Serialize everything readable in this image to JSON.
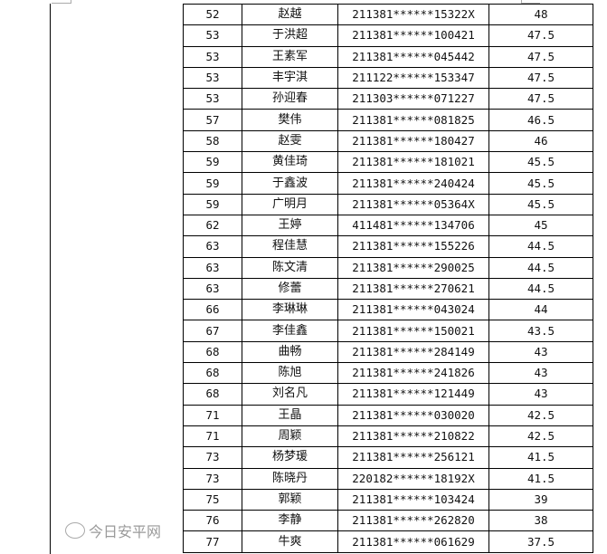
{
  "rows": [
    {
      "rank": "52",
      "name": "赵越",
      "id": "211381******15322X",
      "score": "48"
    },
    {
      "rank": "53",
      "name": "于洪超",
      "id": "211381******100421",
      "score": "47.5"
    },
    {
      "rank": "53",
      "name": "王素军",
      "id": "211381******045442",
      "score": "47.5"
    },
    {
      "rank": "53",
      "name": "丰宇淇",
      "id": "211122******153347",
      "score": "47.5"
    },
    {
      "rank": "53",
      "name": "孙迎春",
      "id": "211303******071227",
      "score": "47.5"
    },
    {
      "rank": "57",
      "name": "樊伟",
      "id": "211381******081825",
      "score": "46.5"
    },
    {
      "rank": "58",
      "name": "赵雯",
      "id": "211381******180427",
      "score": "46"
    },
    {
      "rank": "59",
      "name": "黄佳琦",
      "id": "211381******181021",
      "score": "45.5"
    },
    {
      "rank": "59",
      "name": "于鑫波",
      "id": "211381******240424",
      "score": "45.5"
    },
    {
      "rank": "59",
      "name": "广明月",
      "id": "211381******05364X",
      "score": "45.5"
    },
    {
      "rank": "62",
      "name": "王婷",
      "id": "411481******134706",
      "score": "45"
    },
    {
      "rank": "63",
      "name": "程佳慧",
      "id": "211381******155226",
      "score": "44.5"
    },
    {
      "rank": "63",
      "name": "陈文清",
      "id": "211381******290025",
      "score": "44.5"
    },
    {
      "rank": "63",
      "name": "修蕾",
      "id": "211381******270621",
      "score": "44.5"
    },
    {
      "rank": "66",
      "name": "李琳琳",
      "id": "211381******043024",
      "score": "44"
    },
    {
      "rank": "67",
      "name": "李佳鑫",
      "id": "211381******150021",
      "score": "43.5"
    },
    {
      "rank": "68",
      "name": "曲畅",
      "id": "211381******284149",
      "score": "43"
    },
    {
      "rank": "68",
      "name": "陈旭",
      "id": "211381******241826",
      "score": "43"
    },
    {
      "rank": "68",
      "name": "刘名凡",
      "id": "211381******121449",
      "score": "43"
    },
    {
      "rank": "71",
      "name": "王晶",
      "id": "211381******030020",
      "score": "42.5"
    },
    {
      "rank": "71",
      "name": "周颖",
      "id": "211381******210822",
      "score": "42.5"
    },
    {
      "rank": "73",
      "name": "杨梦瑗",
      "id": "211381******256121",
      "score": "41.5"
    },
    {
      "rank": "73",
      "name": "陈晓丹",
      "id": "220182******18192X",
      "score": "41.5"
    },
    {
      "rank": "75",
      "name": "郭颖",
      "id": "211381******103424",
      "score": "39"
    },
    {
      "rank": "76",
      "name": "李静",
      "id": "211381******262820",
      "score": "38"
    },
    {
      "rank": "77",
      "name": "牛爽",
      "id": "211381******061629",
      "score": "37.5"
    }
  ],
  "watermark": {
    "text": "今日安平网",
    "icon": "wechat-icon"
  }
}
